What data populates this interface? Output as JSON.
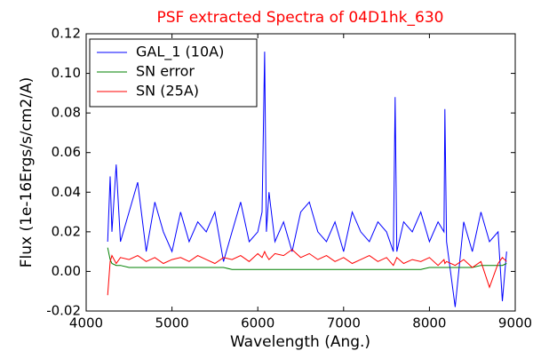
{
  "chart_data": {
    "type": "line",
    "title": "PSF extracted Spectra of 04D1hk_630",
    "xlabel": "Wavelength (Ang.)",
    "ylabel": "Flux (1e-16Ergs/s/cm2/A)",
    "x": [
      4250,
      4280,
      4300,
      4350,
      4400,
      4500,
      4600,
      4700,
      4800,
      4900,
      5000,
      5100,
      5200,
      5300,
      5400,
      5500,
      5600,
      5700,
      5800,
      5900,
      6000,
      6050,
      6080,
      6100,
      6130,
      6200,
      6300,
      6400,
      6500,
      6600,
      6700,
      6800,
      6900,
      7000,
      7100,
      7200,
      7300,
      7400,
      7500,
      7580,
      7600,
      7620,
      7700,
      7800,
      7900,
      8000,
      8100,
      8170,
      8180,
      8200,
      8300,
      8400,
      8500,
      8600,
      8700,
      8800,
      8850,
      8900
    ],
    "series": [
      {
        "name": "GAL_1 (10A)",
        "color": "#0000ff",
        "values": [
          0.015,
          0.048,
          0.02,
          0.054,
          0.015,
          0.03,
          0.045,
          0.01,
          0.035,
          0.02,
          0.01,
          0.03,
          0.015,
          0.025,
          0.02,
          0.03,
          0.005,
          0.02,
          0.035,
          0.015,
          0.02,
          0.03,
          0.111,
          0.02,
          0.04,
          0.015,
          0.025,
          0.01,
          0.03,
          0.035,
          0.02,
          0.015,
          0.025,
          0.01,
          0.03,
          0.02,
          0.015,
          0.025,
          0.02,
          0.01,
          0.088,
          0.01,
          0.025,
          0.02,
          0.03,
          0.015,
          0.025,
          0.02,
          0.082,
          0.015,
          -0.018,
          0.025,
          0.01,
          0.03,
          0.015,
          0.02,
          -0.015,
          0.01
        ]
      },
      {
        "name": "SN error",
        "color": "#008000",
        "values": [
          0.012,
          0.006,
          0.004,
          0.003,
          0.003,
          0.002,
          0.002,
          0.002,
          0.002,
          0.002,
          0.002,
          0.002,
          0.002,
          0.002,
          0.002,
          0.002,
          0.002,
          0.001,
          0.001,
          0.001,
          0.001,
          0.001,
          0.001,
          0.001,
          0.001,
          0.001,
          0.001,
          0.001,
          0.001,
          0.001,
          0.001,
          0.001,
          0.001,
          0.001,
          0.001,
          0.001,
          0.001,
          0.001,
          0.001,
          0.001,
          0.001,
          0.001,
          0.001,
          0.001,
          0.001,
          0.002,
          0.002,
          0.002,
          0.002,
          0.002,
          0.002,
          0.002,
          0.002,
          0.003,
          0.003,
          0.003,
          0.003,
          0.004
        ]
      },
      {
        "name": "SN (25A)",
        "color": "#ff0000",
        "values": [
          -0.012,
          0.005,
          0.008,
          0.004,
          0.007,
          0.006,
          0.008,
          0.005,
          0.007,
          0.004,
          0.006,
          0.007,
          0.005,
          0.008,
          0.006,
          0.004,
          0.007,
          0.006,
          0.008,
          0.005,
          0.009,
          0.007,
          0.01,
          0.008,
          0.006,
          0.009,
          0.008,
          0.011,
          0.007,
          0.009,
          0.006,
          0.008,
          0.005,
          0.007,
          0.004,
          0.006,
          0.008,
          0.005,
          0.007,
          0.003,
          0.005,
          0.007,
          0.004,
          0.006,
          0.005,
          0.007,
          0.003,
          0.006,
          0.004,
          0.005,
          0.003,
          0.006,
          0.002,
          0.005,
          -0.008,
          0.004,
          0.007,
          0.005
        ]
      }
    ],
    "xlim": [
      4000,
      9000
    ],
    "xticks": [
      4000,
      5000,
      6000,
      7000,
      8000,
      9000
    ],
    "ylim": [
      -0.02,
      0.12
    ],
    "yticks": [
      -0.02,
      {
        "value": 0,
        "label": "0.00"
      },
      0.02,
      0.04,
      0.06,
      0.08,
      {
        "value": 0.1,
        "label": "0.10"
      },
      0.12
    ],
    "legend": "upper left",
    "title_color": "#ff0000"
  }
}
